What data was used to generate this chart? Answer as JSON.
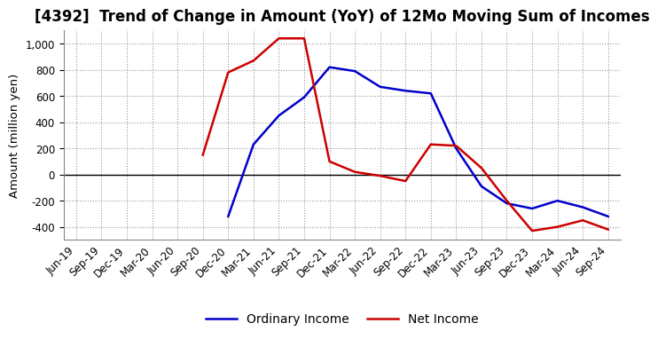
{
  "title": "[4392]  Trend of Change in Amount (YoY) of 12Mo Moving Sum of Incomes",
  "ylabel": "Amount (million yen)",
  "ylim": [
    -500,
    1100
  ],
  "yticks": [
    -400,
    -200,
    0,
    200,
    400,
    600,
    800,
    1000
  ],
  "x_labels": [
    "Jun-19",
    "Sep-19",
    "Dec-19",
    "Mar-20",
    "Jun-20",
    "Sep-20",
    "Dec-20",
    "Mar-21",
    "Jun-21",
    "Sep-21",
    "Dec-21",
    "Mar-22",
    "Jun-22",
    "Sep-22",
    "Dec-22",
    "Mar-23",
    "Jun-23",
    "Sep-23",
    "Dec-23",
    "Mar-24",
    "Jun-24",
    "Sep-24"
  ],
  "ordinary_income": [
    null,
    null,
    null,
    null,
    null,
    null,
    -320,
    230,
    450,
    590,
    820,
    790,
    670,
    640,
    620,
    200,
    -90,
    -220,
    -260,
    -200,
    -250,
    -320
  ],
  "net_income": [
    null,
    null,
    null,
    null,
    null,
    150,
    780,
    870,
    1040,
    1040,
    100,
    20,
    -10,
    -50,
    230,
    220,
    50,
    -200,
    -430,
    -400,
    -350,
    -420
  ],
  "ordinary_color": "#0000cc",
  "net_color": "#cc0000",
  "background_color": "#ffffff",
  "grid_color": "#999999",
  "title_fontsize": 12,
  "legend_fontsize": 10,
  "tick_fontsize": 8.5,
  "line_width": 1.8
}
